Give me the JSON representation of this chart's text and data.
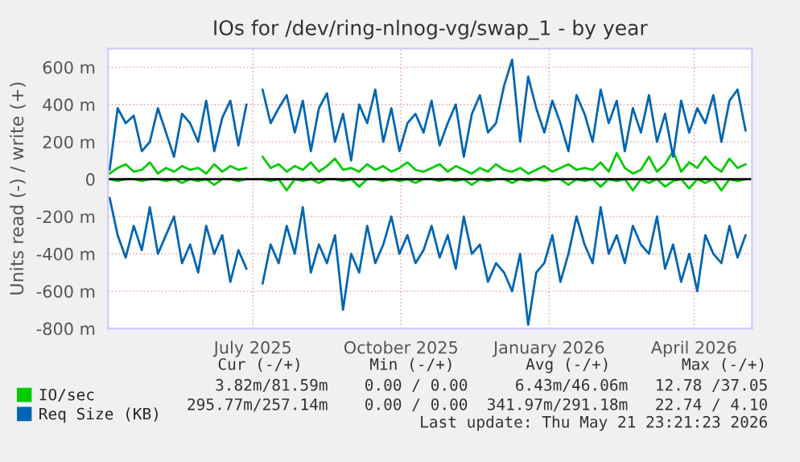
{
  "chart_data": {
    "type": "line",
    "title": "IOs for /dev/ring-nlnog-vg/swap_1 - by year",
    "ylabel": "Units read (-) / write (+)",
    "x": [
      "2025-04-18",
      "2025-04-23",
      "2025-04-28",
      "2025-05-03",
      "2025-05-08",
      "2025-05-13",
      "2025-05-18",
      "2025-05-23",
      "2025-05-28",
      "2025-06-02",
      "2025-06-07",
      "2025-06-12",
      "2025-06-17",
      "2025-06-22",
      "2025-06-27",
      "2025-07-02",
      "2025-07-07",
      "2025-07-12",
      "2025-07-17",
      "2025-07-22",
      "2025-07-27",
      "2025-08-01",
      "2025-08-06",
      "2025-08-11",
      "2025-08-16",
      "2025-08-21",
      "2025-08-26",
      "2025-08-31",
      "2025-09-05",
      "2025-09-10",
      "2025-09-15",
      "2025-09-20",
      "2025-09-25",
      "2025-09-30",
      "2025-10-05",
      "2025-10-10",
      "2025-10-15",
      "2025-10-20",
      "2025-10-25",
      "2025-10-30",
      "2025-11-04",
      "2025-11-09",
      "2025-11-14",
      "2025-11-19",
      "2025-11-24",
      "2025-11-29",
      "2025-12-04",
      "2025-12-09",
      "2025-12-14",
      "2025-12-19",
      "2025-12-24",
      "2025-12-29",
      "2026-01-03",
      "2026-01-08",
      "2026-01-13",
      "2026-01-18",
      "2026-01-23",
      "2026-01-28",
      "2026-02-02",
      "2026-02-07",
      "2026-02-12",
      "2026-02-17",
      "2026-02-22",
      "2026-02-27",
      "2026-03-04",
      "2026-03-09",
      "2026-03-14",
      "2026-03-19",
      "2026-03-24",
      "2026-03-29",
      "2026-04-03",
      "2026-04-08",
      "2026-04-13",
      "2026-04-18",
      "2026-04-23",
      "2026-04-28",
      "2026-05-03",
      "2026-05-08",
      "2026-05-13",
      "2026-05-18"
    ],
    "series": [
      {
        "name": "IO/sec",
        "color": "#00cc00",
        "values": [
          30,
          60,
          80,
          40,
          50,
          90,
          30,
          60,
          40,
          70,
          50,
          60,
          30,
          80,
          40,
          70,
          50,
          60,
          null,
          120,
          60,
          80,
          40,
          70,
          50,
          90,
          40,
          70,
          110,
          50,
          60,
          40,
          80,
          50,
          70,
          40,
          60,
          90,
          50,
          40,
          60,
          80,
          40,
          70,
          50,
          30,
          60,
          40,
          80,
          50,
          40,
          60,
          30,
          50,
          70,
          40,
          60,
          80,
          50,
          60,
          50,
          90,
          40,
          140,
          60,
          30,
          50,
          120,
          40,
          80,
          150,
          40,
          90,
          60,
          120,
          70,
          40,
          110,
          60,
          80
        ]
      },
      {
        "color": "#00cc00",
        "values": [
          0,
          -10,
          0,
          0,
          -10,
          0,
          0,
          -10,
          0,
          -20,
          0,
          -10,
          0,
          -30,
          0,
          0,
          -10,
          0,
          null,
          0,
          -10,
          0,
          -60,
          0,
          -10,
          0,
          -20,
          0,
          0,
          -10,
          0,
          -40,
          0,
          0,
          -10,
          0,
          -10,
          0,
          -20,
          0,
          0,
          -10,
          0,
          -10,
          0,
          -30,
          0,
          -10,
          0,
          0,
          -20,
          0,
          -10,
          0,
          -10,
          0,
          0,
          -30,
          0,
          -10,
          0,
          -40,
          0,
          -10,
          0,
          -60,
          0,
          -20,
          0,
          -40,
          -10,
          0,
          -50,
          0,
          -20,
          0,
          -60,
          0,
          -10,
          0
        ]
      },
      {
        "name": "Req Size (KB)",
        "color": "#0066b3",
        "values": [
          50,
          380,
          300,
          340,
          150,
          200,
          380,
          250,
          120,
          350,
          300,
          200,
          420,
          150,
          330,
          420,
          180,
          400,
          null,
          480,
          300,
          380,
          450,
          250,
          420,
          150,
          380,
          460,
          200,
          350,
          100,
          400,
          300,
          480,
          200,
          380,
          150,
          300,
          350,
          250,
          420,
          180,
          300,
          400,
          120,
          350,
          450,
          250,
          300,
          500,
          640,
          200,
          550,
          380,
          250,
          420,
          300,
          150,
          450,
          350,
          200,
          480,
          300,
          420,
          150,
          380,
          250,
          450,
          200,
          350,
          120,
          420,
          250,
          380,
          300,
          450,
          200,
          420,
          480,
          260
        ]
      },
      {
        "color": "#0066b3",
        "values": [
          -100,
          -300,
          -420,
          -250,
          -380,
          -150,
          -400,
          -300,
          -200,
          -450,
          -350,
          -500,
          -250,
          -400,
          -300,
          -550,
          -380,
          -480,
          null,
          -560,
          -350,
          -450,
          -250,
          -400,
          -150,
          -500,
          -350,
          -450,
          -300,
          -700,
          -400,
          -500,
          -250,
          -450,
          -350,
          -200,
          -400,
          -300,
          -450,
          -380,
          -250,
          -420,
          -300,
          -480,
          -200,
          -400,
          -350,
          -550,
          -450,
          -500,
          -600,
          -400,
          -780,
          -500,
          -450,
          -300,
          -550,
          -400,
          -200,
          -350,
          -450,
          -150,
          -400,
          -300,
          -450,
          -250,
          -350,
          -400,
          -200,
          -480,
          -350,
          -550,
          -400,
          -600,
          -300,
          -400,
          -450,
          -250,
          -420,
          -300
        ]
      }
    ],
    "xlim": [
      "2025-04-17",
      "2026-05-22"
    ],
    "xticks": [
      {
        "value": "2025-07-16",
        "label": "July 2025"
      },
      {
        "value": "2025-10-16",
        "label": "October 2025"
      },
      {
        "value": "2026-01-16",
        "label": "January 2026"
      },
      {
        "value": "2026-04-16",
        "label": "April 2026"
      }
    ],
    "ylim": [
      -800,
      700
    ],
    "yticks": [
      {
        "value": -800,
        "label": "-800 m"
      },
      {
        "value": -600,
        "label": "-600 m"
      },
      {
        "value": -400,
        "label": "-400 m"
      },
      {
        "value": -200,
        "label": "-200 m"
      },
      0,
      {
        "value": 200,
        "label": "200 m"
      },
      {
        "value": 400,
        "label": "400 m"
      },
      {
        "value": 600,
        "label": "600 m"
      }
    ],
    "ref_lines": [
      {
        "axis": "y",
        "value": 0,
        "color": "#000000"
      }
    ],
    "grid": true,
    "legend": "bottom left",
    "marker": "none",
    "line_style": "solid",
    "annotations": [
      "Cur (-/+)",
      "Min (-/+)",
      "Avg (-/+)",
      "Max (-/+)",
      "3.82m/81.59m",
      "0.00 / 0.00",
      "6.43m/46.06m",
      "12.78 /37.05",
      "295.77m/257.14m",
      "0.00 / 0.00",
      "341.97m/291.18m",
      "22.74 / 4.10",
      "Last update: Thu May 21 23:21:23 2026"
    ]
  }
}
